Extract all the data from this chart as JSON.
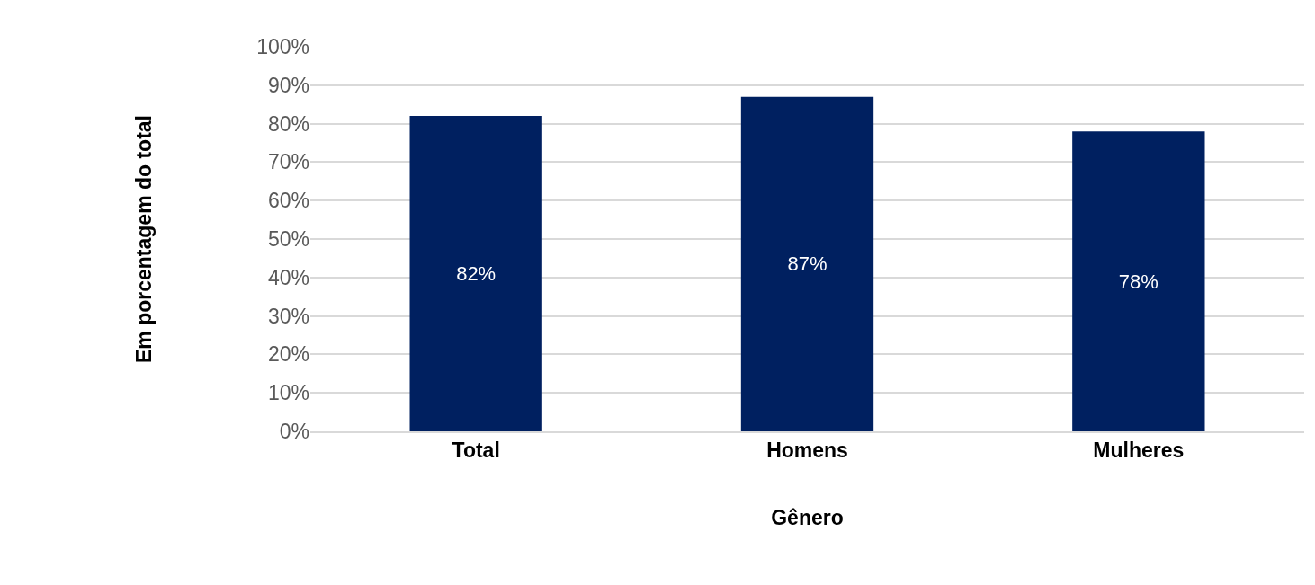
{
  "chart_data": {
    "type": "bar",
    "xlabel": "Gênero",
    "ylabel": "Em porcentagem do total",
    "categories": [
      "Total",
      "Homens",
      "Mulheres"
    ],
    "values": [
      82,
      87,
      78
    ],
    "value_labels": [
      "82%",
      "87%",
      "78%"
    ],
    "color": "#002060",
    "ylim": [
      0,
      100
    ],
    "yticks": [
      {
        "value": 0,
        "label": "0%"
      },
      {
        "value": 10,
        "label": "10%"
      },
      {
        "value": 20,
        "label": "20%"
      },
      {
        "value": 30,
        "label": "30%"
      },
      {
        "value": 40,
        "label": "40%"
      },
      {
        "value": 50,
        "label": "50%"
      },
      {
        "value": 60,
        "label": "60%"
      },
      {
        "value": 70,
        "label": "70%"
      },
      {
        "value": 80,
        "label": "80%"
      },
      {
        "value": 90,
        "label": "90%"
      },
      {
        "value": 100,
        "label": "100%"
      }
    ],
    "grid": "y",
    "legend": false
  }
}
